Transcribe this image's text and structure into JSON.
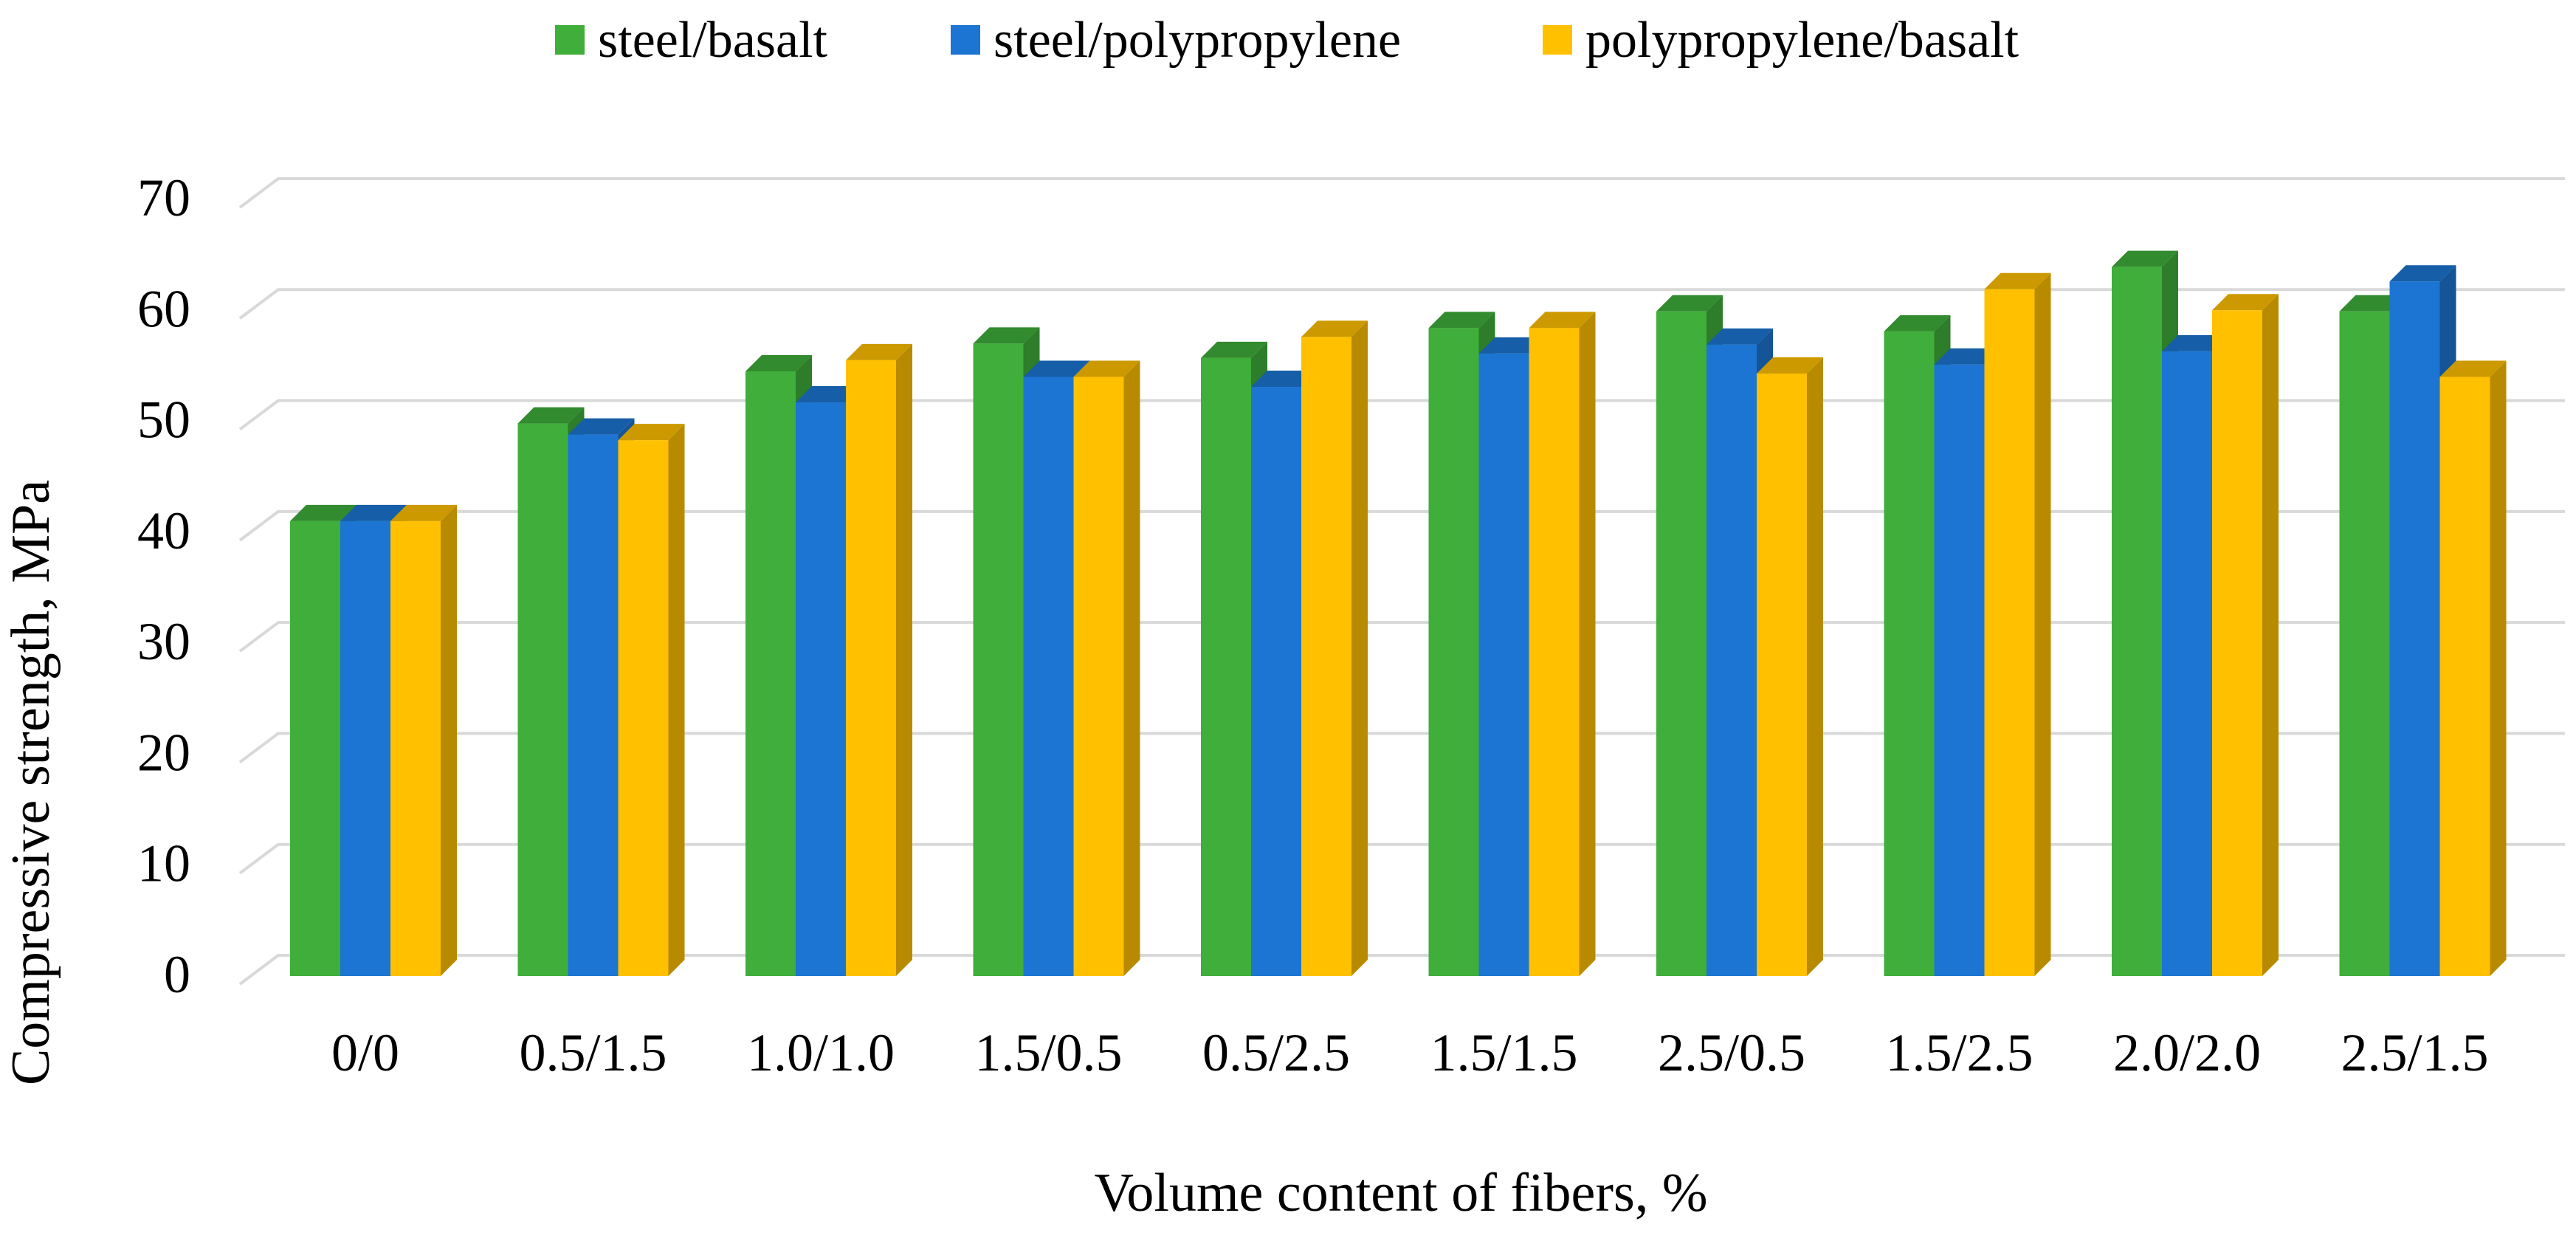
{
  "chart_data": {
    "type": "bar",
    "title": "",
    "xlabel": "Volume content of fibers, %",
    "ylabel": "Compressive strength, MPa",
    "ylim": [
      0,
      70
    ],
    "yticks": [
      0,
      10,
      20,
      30,
      40,
      50,
      60,
      70
    ],
    "grid": true,
    "legend_position": "top-center",
    "categories": [
      "0/0",
      "0.5/1.5",
      "1.0/1.0",
      "1.5/0.5",
      "0.5/2.5",
      "1.5/1.5",
      "2.5/0.5",
      "1.5/2.5",
      "2.0/2.0",
      "2.5/1.5"
    ],
    "series": [
      {
        "name": "steel/basalt",
        "color": "#3FAE3A",
        "values": [
          41.0,
          49.8,
          54.5,
          57.0,
          55.7,
          58.4,
          59.9,
          58.1,
          63.9,
          59.9
        ]
      },
      {
        "name": "steel/polypropylene",
        "color": "#1C75D2",
        "values": [
          41.0,
          48.8,
          51.7,
          54.0,
          53.1,
          56.1,
          56.9,
          55.1,
          56.3,
          62.6
        ]
      },
      {
        "name": "polypropylene/basalt",
        "color": "#FFC000",
        "values": [
          41.0,
          48.3,
          55.5,
          54.0,
          57.6,
          58.4,
          54.3,
          61.9,
          60.0,
          54.0
        ]
      }
    ]
  }
}
